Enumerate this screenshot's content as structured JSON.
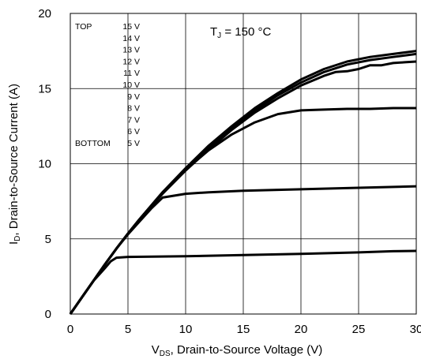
{
  "chart_data": {
    "type": "line",
    "xlabel_main": "V",
    "xlabel_sub": "DS",
    "xlabel_rest": ", Drain-to-Source Voltage (V)",
    "ylabel_main": "I",
    "ylabel_sub": "D",
    "ylabel_rest": ", Drain-to-Source Current (A)",
    "xlim": [
      0,
      30
    ],
    "ylim": [
      0,
      20
    ],
    "xticks": [
      "0",
      "5",
      "10",
      "15",
      "20",
      "25",
      "30"
    ],
    "yticks": [
      "0",
      "5",
      "10",
      "15",
      "20"
    ],
    "grid": true,
    "annotation": {
      "main": "T",
      "sub": "J",
      "rest": " = 150 °C"
    },
    "legend": {
      "placement": "top-left",
      "top_label": "TOP",
      "bottom_label": "BOTTOM",
      "entries": [
        "15 V",
        "14 V",
        "13 V",
        "12 V",
        "11 V",
        "10 V",
        "9 V",
        "8 V",
        "7 V",
        "6 V",
        "5 V"
      ]
    },
    "series": [
      {
        "x": [
          0,
          1,
          2,
          3,
          4,
          5,
          6,
          8,
          10,
          12,
          14,
          16,
          18,
          20,
          22,
          24,
          26,
          28,
          30
        ],
        "values": [
          0,
          1.1,
          2.2,
          3.3,
          4.35,
          5.35,
          6.3,
          8.1,
          9.7,
          11.2,
          12.5,
          13.7,
          14.7,
          15.6,
          16.3,
          16.8,
          17.1,
          17.3,
          17.5
        ]
      },
      {
        "x": [
          0,
          1,
          2,
          3,
          4,
          5,
          6,
          8,
          10,
          12,
          14,
          16,
          18,
          20,
          22,
          24,
          26,
          28,
          30
        ],
        "values": [
          0,
          1.1,
          2.2,
          3.3,
          4.35,
          5.35,
          6.3,
          8.05,
          9.65,
          11.1,
          12.4,
          13.55,
          14.55,
          15.4,
          16.1,
          16.6,
          16.9,
          17.1,
          17.3
        ]
      },
      {
        "x": [
          0,
          1,
          2,
          3,
          4,
          5,
          6,
          8,
          10,
          12,
          14,
          16,
          18,
          20,
          22,
          23,
          24,
          25,
          26,
          27,
          28,
          29,
          30
        ],
        "values": [
          0,
          1.1,
          2.2,
          3.3,
          4.35,
          5.35,
          6.3,
          8.0,
          9.55,
          10.95,
          12.25,
          13.4,
          14.35,
          15.2,
          15.85,
          16.1,
          16.15,
          16.3,
          16.55,
          16.55,
          16.7,
          16.75,
          16.8
        ]
      },
      {
        "x": [
          0,
          1,
          2,
          3,
          4,
          5,
          6,
          7,
          8,
          10,
          12,
          14,
          16,
          18,
          20,
          22,
          24,
          26,
          28,
          30
        ],
        "values": [
          0,
          1.1,
          2.2,
          3.3,
          4.35,
          5.35,
          6.3,
          7.2,
          8.1,
          9.6,
          10.9,
          11.95,
          12.75,
          13.3,
          13.55,
          13.6,
          13.65,
          13.65,
          13.7,
          13.7
        ]
      },
      {
        "x": [
          0,
          1,
          2,
          3,
          4,
          5,
          6,
          7,
          8,
          10,
          12,
          15,
          20,
          25,
          30
        ],
        "values": [
          0,
          1.1,
          2.2,
          3.3,
          4.35,
          5.3,
          6.15,
          7.0,
          7.75,
          8.0,
          8.1,
          8.2,
          8.3,
          8.4,
          8.5
        ]
      },
      {
        "x": [
          0,
          1,
          2,
          3,
          3.5,
          4,
          5,
          10,
          15,
          20,
          25,
          28,
          30
        ],
        "values": [
          0,
          1.1,
          2.2,
          3.05,
          3.5,
          3.75,
          3.8,
          3.85,
          3.92,
          4.0,
          4.1,
          4.18,
          4.2
        ]
      }
    ]
  }
}
